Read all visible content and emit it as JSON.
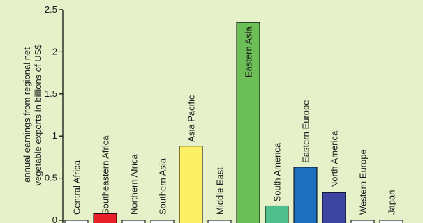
{
  "chart_data": {
    "type": "bar",
    "title": "",
    "xlabel": "",
    "ylabel_lines": [
      "annual earnings from regional net",
      "vegetable exports in billions of US$"
    ],
    "ylim": [
      0,
      2.5
    ],
    "yticks": [
      "0",
      "0.5",
      "1",
      "1.5",
      "2",
      "2.5"
    ],
    "grid": false,
    "categories": [
      "Central Africa",
      "Southeastern Africa",
      "Northern Africa",
      "Southern Asia",
      "Asia Pacific",
      "Middle East",
      "Eastern Asia",
      "South America",
      "Eastern Europe",
      "North America",
      "Western Europe",
      "Japan"
    ],
    "values": [
      0,
      0.08,
      0,
      0,
      0.88,
      0,
      2.35,
      0.17,
      0.63,
      0.33,
      0,
      0
    ],
    "colors": [
      "#ffffff",
      "#e8202a",
      "#ffffff",
      "#ffffff",
      "#fdf064",
      "#ffffff",
      "#6cbf56",
      "#4fbf8e",
      "#1e6fbd",
      "#3e44a2",
      "#ffffff",
      "#ffffff"
    ]
  }
}
